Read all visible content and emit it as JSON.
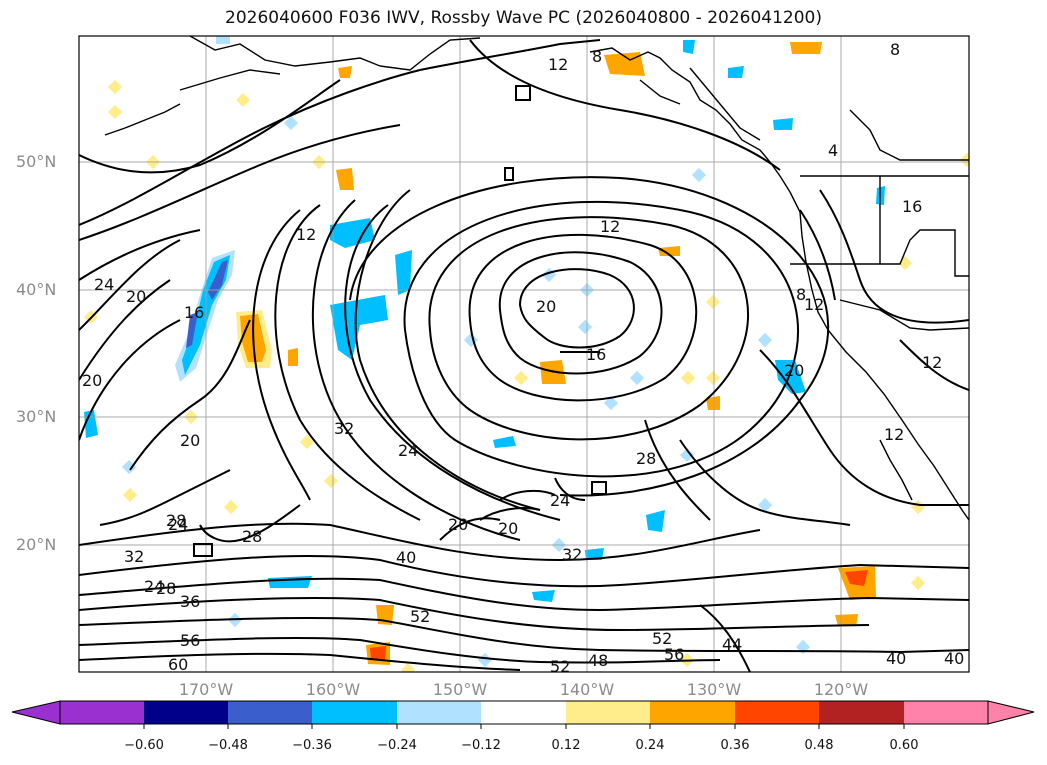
{
  "title": "2026040600 F036 IWV, Rossby Wave PC (2026040800 - 2026041200)",
  "lat_labels": [
    "50°N",
    "40°N",
    "30°N",
    "20°N"
  ],
  "lon_labels": [
    "170°W",
    "160°W",
    "150°W",
    "140°W",
    "130°W",
    "120°W"
  ],
  "contour_labels": [
    "12",
    "8",
    "8",
    "4",
    "24",
    "20",
    "16",
    "12",
    "20",
    "12",
    "20",
    "16",
    "20",
    "24",
    "28",
    "32",
    "24",
    "20",
    "24",
    "20",
    "28",
    "28",
    "32",
    "40",
    "32",
    "36",
    "28",
    "24",
    "56",
    "60",
    "52",
    "52",
    "48",
    "56",
    "52",
    "44",
    "40",
    "40",
    "12",
    "8",
    "16",
    "20",
    "12",
    "12"
  ],
  "colorbar": {
    "ticks": [
      "−0.60",
      "−0.48",
      "−0.36",
      "−0.24",
      "−0.12",
      "0.12",
      "0.24",
      "0.36",
      "0.48",
      "0.60"
    ],
    "colors": [
      "#9b30d0",
      "#00008b",
      "#3a5fcd",
      "#00bfff",
      "#b0e2ff",
      "#ffffff",
      "#ffec8b",
      "#ffa500",
      "#ff4500",
      "#b22222",
      "#ff82ab"
    ]
  },
  "palette": {
    "neg_strong": "#3a5fcd",
    "neg": "#00bfff",
    "neg_weak": "#b0e2ff",
    "pos_weak": "#ffec8b",
    "pos": "#ffa500",
    "pos_strong": "#ff4500",
    "contour": "#000000",
    "grid": "#a0a0a0"
  }
}
